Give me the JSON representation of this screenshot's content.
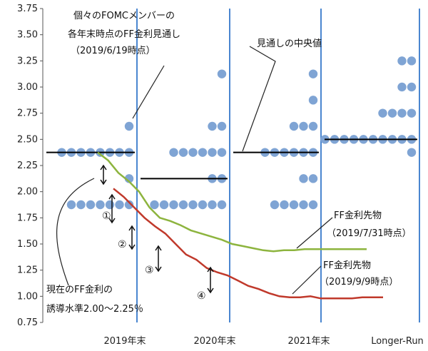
{
  "chart_data": {
    "type": "scatter",
    "ylim": [
      0.75,
      3.75
    ],
    "yticks": [
      "0.75",
      "1.00",
      "1.25",
      "1.50",
      "1.75",
      "2.00",
      "2.25",
      "2.50",
      "2.75",
      "3.00",
      "3.25",
      "3.50",
      "3.75"
    ],
    "categories": [
      "2019年末",
      "2020年末",
      "2021年末",
      "Longer-Run"
    ],
    "dots": [
      {
        "category": "2019年末",
        "values": [
          2.625,
          2.375,
          2.375,
          2.375,
          2.375,
          2.375,
          2.375,
          2.375,
          2.375,
          2.125,
          1.875,
          1.875,
          1.875,
          1.875,
          1.875,
          1.875,
          1.875
        ]
      },
      {
        "category": "2020年末",
        "values": [
          3.125,
          2.625,
          2.625,
          2.375,
          2.375,
          2.375,
          2.375,
          2.375,
          2.375,
          2.125,
          2.125,
          1.875,
          1.875,
          1.875,
          1.875,
          1.875,
          1.875,
          1.875,
          1.875
        ]
      },
      {
        "category": "2021年末",
        "values": [
          3.125,
          2.875,
          2.625,
          2.625,
          2.625,
          2.375,
          2.375,
          2.375,
          2.375,
          2.375,
          2.375,
          2.125,
          2.125,
          1.875,
          1.875,
          1.875,
          1.875,
          1.875
        ]
      },
      {
        "category": "Longer-Run",
        "values": [
          3.25,
          3.25,
          3.0,
          3.0,
          2.75,
          2.75,
          2.75,
          2.75,
          2.5,
          2.5,
          2.5,
          2.5,
          2.5,
          2.5,
          2.5,
          2.5,
          2.5,
          2.5,
          2.375
        ]
      }
    ],
    "medians": [
      {
        "category": "2019年末",
        "value": 2.375
      },
      {
        "category": "2020年末",
        "value": 2.125
      },
      {
        "category": "2021年末",
        "value": 2.375
      },
      {
        "category": "Longer-Run",
        "value": 2.5
      }
    ],
    "series": [
      {
        "name": "FF金利先物（2019/7/31時点）",
        "color": "#8db43e",
        "values": [
          2.375,
          2.3,
          2.18,
          2.1,
          2.0,
          1.85,
          1.75,
          1.72,
          1.68,
          1.63,
          1.6,
          1.57,
          1.54,
          1.5,
          1.48,
          1.46,
          1.44,
          1.43,
          1.44,
          1.44,
          1.45,
          1.45,
          1.45,
          1.45,
          1.45,
          1.45,
          1.45
        ]
      },
      {
        "name": "FF金利先物（2019/9/9時点）",
        "color": "#c0392b",
        "values": [
          2.03,
          1.95,
          1.85,
          1.75,
          1.67,
          1.6,
          1.5,
          1.4,
          1.35,
          1.27,
          1.23,
          1.2,
          1.15,
          1.1,
          1.07,
          1.03,
          1.0,
          0.99,
          0.99,
          1.0,
          0.98,
          0.98,
          0.98,
          0.98,
          0.99,
          0.99,
          0.99
        ]
      }
    ],
    "annotations": {
      "dots_title_1": "個々のFOMCメンバーの",
      "dots_title_2": "各年末時点のFF金利見通し",
      "dots_title_3": "（2019/6/19時点）",
      "median_label": "見通しの中央値",
      "current_1": "現在のFF金利の",
      "current_2": "誘導水準2.00～2.25％",
      "futures1_1": "FF金利先物",
      "futures1_2": "（2019/7/31時点）",
      "futures2_1": "FF金利先物",
      "futures2_2": "（2019/9/9時点）",
      "gaps": [
        "①",
        "②",
        "③",
        "④"
      ]
    },
    "colors": {
      "dot": "#7fa4d4",
      "median": "#000000",
      "divider": "#4a86d0"
    }
  }
}
